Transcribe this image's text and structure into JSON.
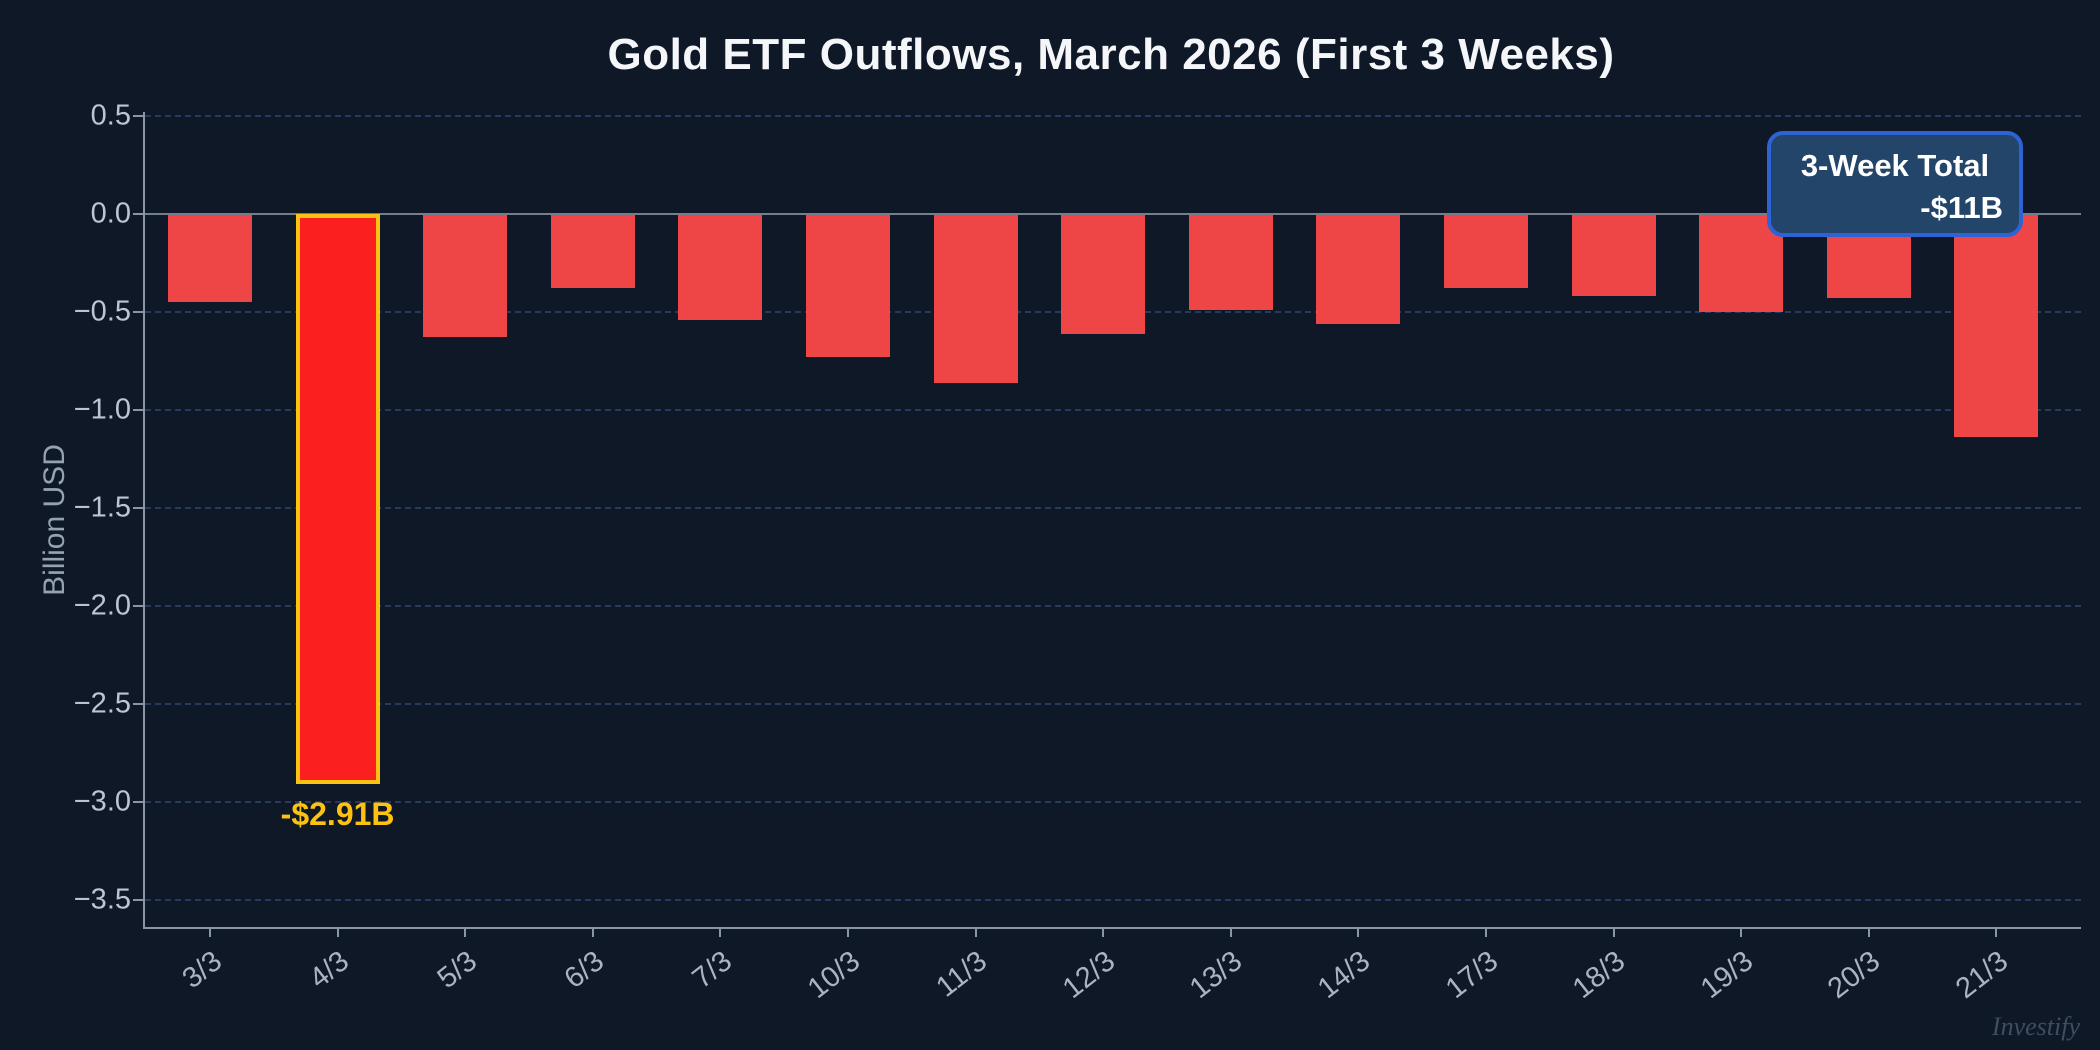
{
  "title": "Gold ETF Outflows, March 2026 (First 3 Weeks)",
  "watermark": "Investify",
  "annotation": {
    "line1": "3-Week Total",
    "line2": "-$11B"
  },
  "colors": {
    "background": "#0e1827",
    "bar": "#ee4646",
    "highlight_bar": "#fb1f1f",
    "highlight_border": "#fcc211",
    "annotation_fill": "#234569",
    "annotation_border": "#2e63d4",
    "gridline": "#273a5e",
    "zero_line": "#737e8c",
    "axis": "#8b96a5",
    "title_text": "#f4f6f9",
    "tick_text": "#bcc5d2"
  },
  "chart_data": {
    "type": "bar",
    "title": "Gold ETF Outflows, March 2026 (First 3 Weeks)",
    "xlabel": "",
    "ylabel": "Billion USD",
    "categories": [
      "3/3",
      "4/3",
      "5/3",
      "6/3",
      "7/3",
      "10/3",
      "11/3",
      "12/3",
      "13/3",
      "14/3",
      "17/3",
      "18/3",
      "19/3",
      "20/3",
      "21/3"
    ],
    "values": [
      -0.45,
      -2.91,
      -0.63,
      -0.38,
      -0.54,
      -0.73,
      -0.86,
      -0.61,
      -0.49,
      -0.56,
      -0.38,
      -0.42,
      -0.5,
      -0.43,
      -1.14
    ],
    "unit": "Billion USD",
    "yticks": [
      0.5,
      0,
      -0.5,
      -1,
      -1.5,
      -2,
      -2.5,
      -3,
      -3.5
    ],
    "ytick_labels": [
      "0.5",
      "0.0",
      "−0.5",
      "−1.0",
      "−1.5",
      "−2.0",
      "−2.5",
      "−3.0",
      "−3.5"
    ],
    "ylim": [
      -3.65,
      0.52
    ],
    "grid": "horizontal-dashed",
    "legend": "none",
    "highlight_index": 1,
    "highlight_label": "-$2.91B",
    "annotation_text": "3-Week Total -$11B",
    "annotation_position": "top-right",
    "three_week_total": "-$11B"
  }
}
